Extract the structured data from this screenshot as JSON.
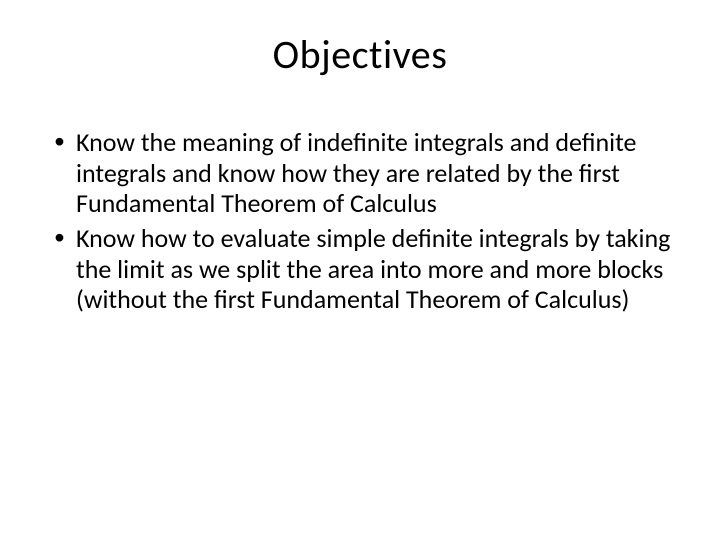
{
  "slide": {
    "title": "Objectives",
    "title_fontsize": 40,
    "body_fontsize": 26,
    "background_color": "#ffffff",
    "text_color": "#000000",
    "bullets": [
      "Know the meaning of indefinite integrals and definite integrals and know how they are related by the first Fundamental Theorem of Calculus",
      "Know how to evaluate simple definite integrals by taking the limit as we split the area into more and more blocks (without the first Fundamental Theorem of Calculus)"
    ]
  }
}
